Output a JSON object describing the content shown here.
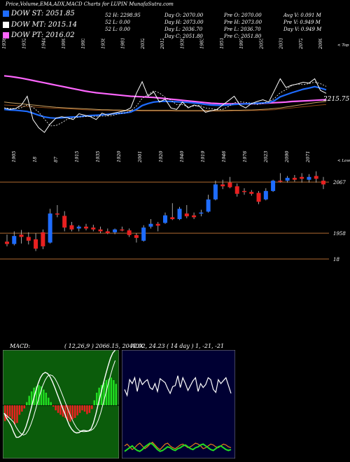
{
  "header": {
    "title": "Price,Volume,EMA,ADX,MACD Charts for LUPIN  MunafaSutra.com",
    "dow_st": {
      "label": "DOW ST: 2051.85",
      "color": "#1e6cff"
    },
    "dow_mt": {
      "label": "DOW MT: 2015.14",
      "color": "#ffffff"
    },
    "dow_pt": {
      "label": "DOW PT: 2016.02",
      "color": "#ff66ff"
    },
    "row1": [
      "52 H: 2298.95",
      "Day O: 2070.00",
      "Pre  O: 2070.00",
      "Avg V: 0.091 M"
    ],
    "row2": [
      "52  L: 0.00",
      "Day H: 2073.00",
      "Pre  H: 2073.00",
      "Pre  V: 0.949 M"
    ],
    "row3": [
      "52  L: 0.00",
      "Day L: 2036.70",
      "Pre  L: 2036.70",
      "Day V: 0.949 M"
    ],
    "row4": [
      "Day C: 2051.80",
      "Pre  C: 2051.80"
    ]
  },
  "chart_data": [
    {
      "type": "line",
      "name": "EMA / ADX panel",
      "top_value_labels": [
        "1936",
        "1932",
        "1944",
        "1999",
        "1993",
        "1938",
        "1981",
        "2032",
        "2012",
        "1938",
        "1983",
        "1951",
        "1997",
        "2055",
        "2031",
        "2072",
        "2099"
      ],
      "bottom_value_labels": [
        "1905",
        "18",
        "87",
        "1915",
        "1935",
        "1920",
        "2001",
        "1920",
        "1940",
        "1919",
        "1946",
        "1976",
        "2023",
        "2090",
        "2071"
      ],
      "corner_labels": [
        "< Top",
        "< Lowest"
      ],
      "price_label": "2215.75",
      "series": [
        {
          "color": "#ffffff",
          "values": [
            2030,
            2025,
            2028,
            2040,
            2070,
            1990,
            1962,
            1946,
            1975,
            1995,
            2000,
            1996,
            1990,
            2010,
            2005,
            2000,
            1990,
            2012,
            2005,
            2012,
            2016,
            2020,
            2030,
            2080,
            2120,
            2070,
            2085,
            2050,
            2060,
            2030,
            2025,
            2050,
            2030,
            2040,
            2035,
            2015,
            2020,
            2025,
            2040,
            2055,
            2070,
            2040,
            2030,
            2045,
            2052,
            2058,
            2050,
            2090,
            2130,
            2100,
            2108,
            2112,
            2118,
            2115,
            2130,
            2090,
            2080
          ]
        },
        {
          "color": "#1e6cff",
          "values": [
            2025,
            2023,
            2022,
            2020,
            2018,
            2012,
            2005,
            1999,
            1996,
            1995,
            1996,
            1998,
            1999,
            2000,
            2002,
            2004,
            2005,
            2006,
            2008,
            2010,
            2011,
            2013,
            2016,
            2025,
            2038,
            2045,
            2050,
            2052,
            2053,
            2052,
            2051,
            2050,
            2049,
            2047,
            2045,
            2042,
            2040,
            2039,
            2039,
            2040,
            2042,
            2043,
            2044,
            2045,
            2046,
            2047,
            2048,
            2055,
            2068,
            2075,
            2082,
            2088,
            2094,
            2098,
            2103,
            2098,
            2092
          ]
        },
        {
          "color": "#ff66ff",
          "values": [
            2140,
            2138,
            2135,
            2132,
            2128,
            2124,
            2120,
            2116,
            2112,
            2108,
            2104,
            2100,
            2096,
            2092,
            2088,
            2085,
            2082,
            2080,
            2078,
            2076,
            2074,
            2072,
            2070,
            2069,
            2068,
            2067,
            2066,
            2064,
            2062,
            2060,
            2058,
            2056,
            2054,
            2052,
            2050,
            2048,
            2046,
            2045,
            2044,
            2044,
            2044,
            2044,
            2044,
            2044,
            2045,
            2046,
            2047,
            2048,
            2049,
            2050,
            2052,
            2053,
            2054,
            2055,
            2056,
            2057,
            2058
          ]
        },
        {
          "color": "#c8a060",
          "values": [
            2050,
            2048,
            2046,
            2044,
            2042,
            2040,
            2038,
            2036,
            2034,
            2032,
            2031,
            2030,
            2029,
            2028,
            2027,
            2026,
            2025,
            2024,
            2024,
            2023,
            2023,
            2022,
            2022,
            2022,
            2022,
            2022,
            2022,
            2022,
            2022,
            2022,
            2021,
            2021,
            2021,
            2021,
            2021,
            2021,
            2021,
            2021,
            2021,
            2022,
            2022,
            2022,
            2023,
            2023,
            2024,
            2025,
            2026,
            2028,
            2030,
            2033,
            2036,
            2039,
            2042,
            2045,
            2048,
            2050,
            2052
          ]
        },
        {
          "color": "#8b4513",
          "values": [
            2040,
            2039,
            2038,
            2036,
            2035,
            2034,
            2032,
            2031,
            2030,
            2029,
            2028,
            2027,
            2026,
            2025,
            2024,
            2023,
            2022,
            2022,
            2021,
            2021,
            2020,
            2020,
            2020,
            2020,
            2019,
            2019,
            2019,
            2019,
            2019,
            2019,
            2019,
            2019,
            2019,
            2019,
            2019,
            2019,
            2019,
            2019,
            2019,
            2019,
            2020,
            2020,
            2020,
            2021,
            2021,
            2022,
            2023,
            2024,
            2026,
            2028,
            2030,
            2032,
            2034,
            2036,
            2038,
            2040,
            2042
          ]
        }
      ]
    },
    {
      "type": "candlestick",
      "name": "price panel",
      "price_levels": [
        "2067",
        "1958",
        "18"
      ],
      "candles": [
        {
          "o": 1940,
          "h": 1955,
          "l": 1930,
          "c": 1935
        },
        {
          "o": 1935,
          "h": 1962,
          "l": 1932,
          "c": 1952
        },
        {
          "o": 1955,
          "h": 1965,
          "l": 1936,
          "c": 1950
        },
        {
          "o": 1950,
          "h": 1960,
          "l": 1934,
          "c": 1942
        },
        {
          "o": 1945,
          "h": 1958,
          "l": 1920,
          "c": 1925
        },
        {
          "o": 1960,
          "h": 1966,
          "l": 1924,
          "c": 1930
        },
        {
          "o": 1938,
          "h": 2010,
          "l": 1936,
          "c": 2000
        },
        {
          "o": 2000,
          "h": 2018,
          "l": 1992,
          "c": 1998
        },
        {
          "o": 1995,
          "h": 2005,
          "l": 1962,
          "c": 1970
        },
        {
          "o": 1975,
          "h": 1982,
          "l": 1962,
          "c": 1966
        },
        {
          "o": 1968,
          "h": 1975,
          "l": 1962,
          "c": 1972
        },
        {
          "o": 1972,
          "h": 1978,
          "l": 1964,
          "c": 1968
        },
        {
          "o": 1970,
          "h": 1976,
          "l": 1962,
          "c": 1966
        },
        {
          "o": 1966,
          "h": 1972,
          "l": 1958,
          "c": 1962
        },
        {
          "o": 1962,
          "h": 1968,
          "l": 1956,
          "c": 1958
        },
        {
          "o": 1960,
          "h": 1968,
          "l": 1956,
          "c": 1966
        },
        {
          "o": 1966,
          "h": 1972,
          "l": 1962,
          "c": 1964
        },
        {
          "o": 1964,
          "h": 1968,
          "l": 1950,
          "c": 1954
        },
        {
          "o": 1954,
          "h": 1958,
          "l": 1938,
          "c": 1948
        },
        {
          "o": 1942,
          "h": 1975,
          "l": 1940,
          "c": 1970
        },
        {
          "o": 1972,
          "h": 1988,
          "l": 1968,
          "c": 1978
        },
        {
          "o": 1978,
          "h": 1982,
          "l": 1962,
          "c": 1974
        },
        {
          "o": 1980,
          "h": 2002,
          "l": 1978,
          "c": 1996
        },
        {
          "o": 1992,
          "h": 2022,
          "l": 1986,
          "c": 1988
        },
        {
          "o": 1988,
          "h": 2014,
          "l": 1986,
          "c": 2010
        },
        {
          "o": 2000,
          "h": 2018,
          "l": 1990,
          "c": 1994
        },
        {
          "o": 1996,
          "h": 2002,
          "l": 1988,
          "c": 1992
        },
        {
          "o": 2000,
          "h": 2008,
          "l": 1994,
          "c": 2002
        },
        {
          "o": 2004,
          "h": 2040,
          "l": 2002,
          "c": 2030
        },
        {
          "o": 2030,
          "h": 2070,
          "l": 2028,
          "c": 2062
        },
        {
          "o": 2062,
          "h": 2072,
          "l": 2052,
          "c": 2058
        },
        {
          "o": 2066,
          "h": 2078,
          "l": 2054,
          "c": 2056
        },
        {
          "o": 2058,
          "h": 2064,
          "l": 2036,
          "c": 2042
        },
        {
          "o": 2048,
          "h": 2054,
          "l": 2040,
          "c": 2046
        },
        {
          "o": 2046,
          "h": 2050,
          "l": 2038,
          "c": 2042
        },
        {
          "o": 2044,
          "h": 2048,
          "l": 2020,
          "c": 2025
        },
        {
          "o": 2030,
          "h": 2054,
          "l": 2028,
          "c": 2048
        },
        {
          "o": 2048,
          "h": 2072,
          "l": 2046,
          "c": 2070
        },
        {
          "o": 2070,
          "h": 2086,
          "l": 2066,
          "c": 2068
        },
        {
          "o": 2070,
          "h": 2080,
          "l": 2066,
          "c": 2076
        },
        {
          "o": 2076,
          "h": 2082,
          "l": 2068,
          "c": 2072
        },
        {
          "o": 2078,
          "h": 2086,
          "l": 2066,
          "c": 2074
        },
        {
          "o": 2072,
          "h": 2084,
          "l": 2066,
          "c": 2078
        },
        {
          "o": 2080,
          "h": 2090,
          "l": 2066,
          "c": 2074
        },
        {
          "o": 2070,
          "h": 2078,
          "l": 2052,
          "c": 2062
        }
      ]
    },
    {
      "type": "bar",
      "name": "MACD panel",
      "title": "MACD:",
      "params": "( 12,26,9 ) 2066.15, 2041.92, 24.23",
      "histogram": [
        -25,
        -20,
        -18,
        -22,
        -30,
        -28,
        -15,
        -10,
        -5,
        5,
        15,
        22,
        28,
        30,
        32,
        30,
        25,
        20,
        12,
        5,
        -2,
        -8,
        -12,
        -15,
        -18,
        -20,
        -24,
        -26,
        -22,
        -20,
        -16,
        -12,
        -8,
        -10,
        -14,
        -12,
        -6,
        8,
        20,
        28,
        32,
        36,
        40,
        42,
        44,
        40,
        34
      ]
    },
    {
      "type": "line",
      "name": "ADX panel",
      "title": "ADX",
      "params": "( 14  day ) 1,  -21,  -21",
      "series": [
        {
          "color": "#ffffff",
          "values": [
            24,
            18,
            34,
            30,
            36,
            22,
            35,
            29,
            32,
            34,
            26,
            24,
            30,
            22,
            35,
            33,
            31,
            25,
            20,
            27,
            28,
            38,
            26,
            36,
            30,
            23,
            28,
            33,
            36,
            22,
            30,
            26,
            29,
            36,
            34,
            24,
            21,
            34,
            30,
            33,
            36,
            28,
            20
          ]
        },
        {
          "color": "#e57c1a",
          "values": [
            10,
            12,
            9,
            6,
            8,
            11,
            13,
            10,
            7,
            9,
            12,
            14,
            11,
            8,
            6,
            9,
            12,
            13,
            10,
            8,
            7,
            9,
            11,
            12,
            10,
            8,
            9,
            11,
            13,
            12,
            10,
            7,
            8,
            10,
            12,
            11,
            9,
            8,
            10,
            12,
            11,
            9,
            8
          ]
        },
        {
          "color": "#22dd22",
          "values": [
            4,
            6,
            8,
            10,
            7,
            5,
            4,
            6,
            9,
            11,
            13,
            12,
            9,
            6,
            4,
            5,
            7,
            9,
            8,
            6,
            5,
            7,
            8,
            10,
            11,
            9,
            7,
            6,
            8,
            9,
            11,
            12,
            10,
            8,
            6,
            5,
            7,
            9,
            10,
            8,
            6,
            5,
            6
          ]
        }
      ]
    }
  ]
}
